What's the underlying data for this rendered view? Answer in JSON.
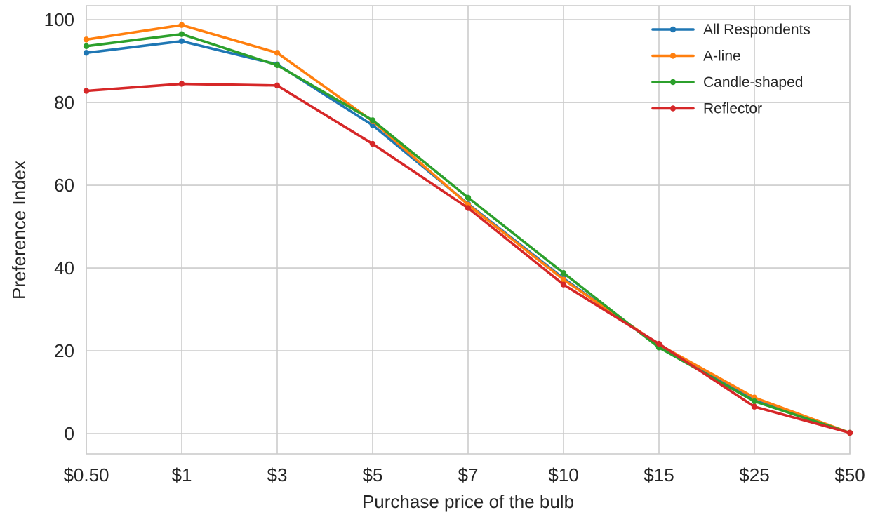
{
  "chart_data": {
    "type": "line",
    "title": "",
    "xlabel": "Purchase price of the bulb",
    "ylabel": "Preference Index",
    "categories": [
      "$0.50",
      "$1",
      "$3",
      "$5",
      "$7",
      "$10",
      "$15",
      "$25",
      "$50"
    ],
    "ylim": [
      -4.9,
      103.4
    ],
    "yticks": [
      0,
      20,
      40,
      60,
      80,
      100
    ],
    "grid": true,
    "legend_position": "top-right",
    "series": [
      {
        "name": "All Respondents",
        "color": "#1f77b4",
        "values": [
          92,
          94.8,
          89.2,
          74.5,
          55.5,
          37.5,
          21.2,
          8,
          0.2
        ]
      },
      {
        "name": "A-line",
        "color": "#ff7f0e",
        "values": [
          95.2,
          98.7,
          92,
          75.5,
          55.3,
          37.2,
          21.5,
          8.7,
          0.2
        ]
      },
      {
        "name": "Candle-shaped",
        "color": "#2ca02c",
        "values": [
          93.6,
          96.5,
          89,
          75.7,
          57,
          38.8,
          20.8,
          7.8,
          0.2
        ]
      },
      {
        "name": "Reflector",
        "color": "#d62728",
        "values": [
          82.8,
          84.5,
          84.1,
          70,
          54.5,
          36,
          21.7,
          6.5,
          0.2
        ]
      }
    ]
  }
}
